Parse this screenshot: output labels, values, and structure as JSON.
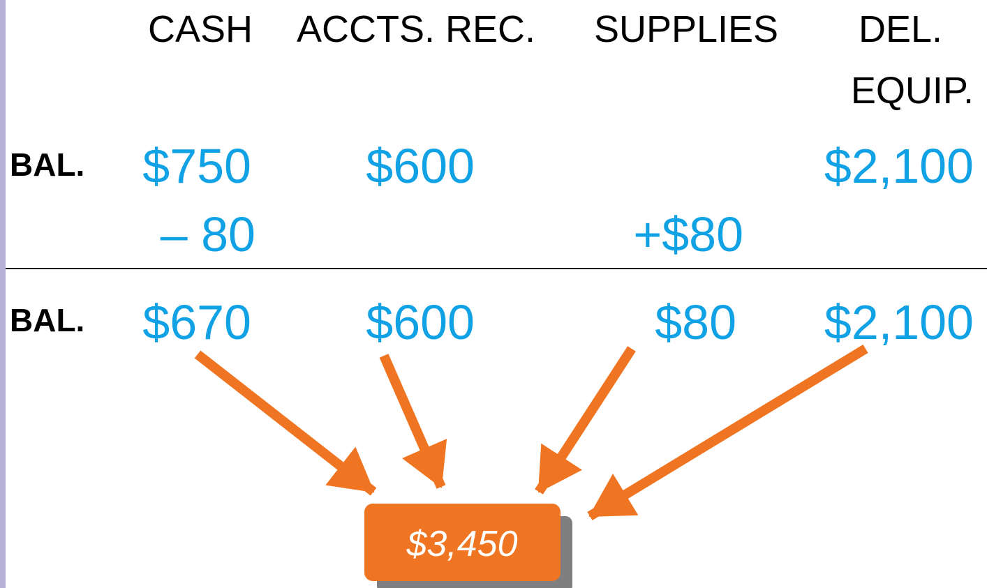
{
  "header": {
    "columns": [
      "CASH",
      "ACCTS. REC.",
      "SUPPLIES",
      "DEL.",
      "EQUIP."
    ]
  },
  "rows": [
    {
      "label": "BAL.",
      "cash": "$750",
      "accts_rec": "$600",
      "del_equip": "$2,100"
    },
    {
      "cash": "– 80",
      "supplies": "+$80"
    },
    {
      "label": "BAL.",
      "cash": "$670",
      "accts_rec": "$600",
      "supplies": "$80",
      "del_equip": "$2,100"
    }
  ],
  "total": "$3,450"
}
